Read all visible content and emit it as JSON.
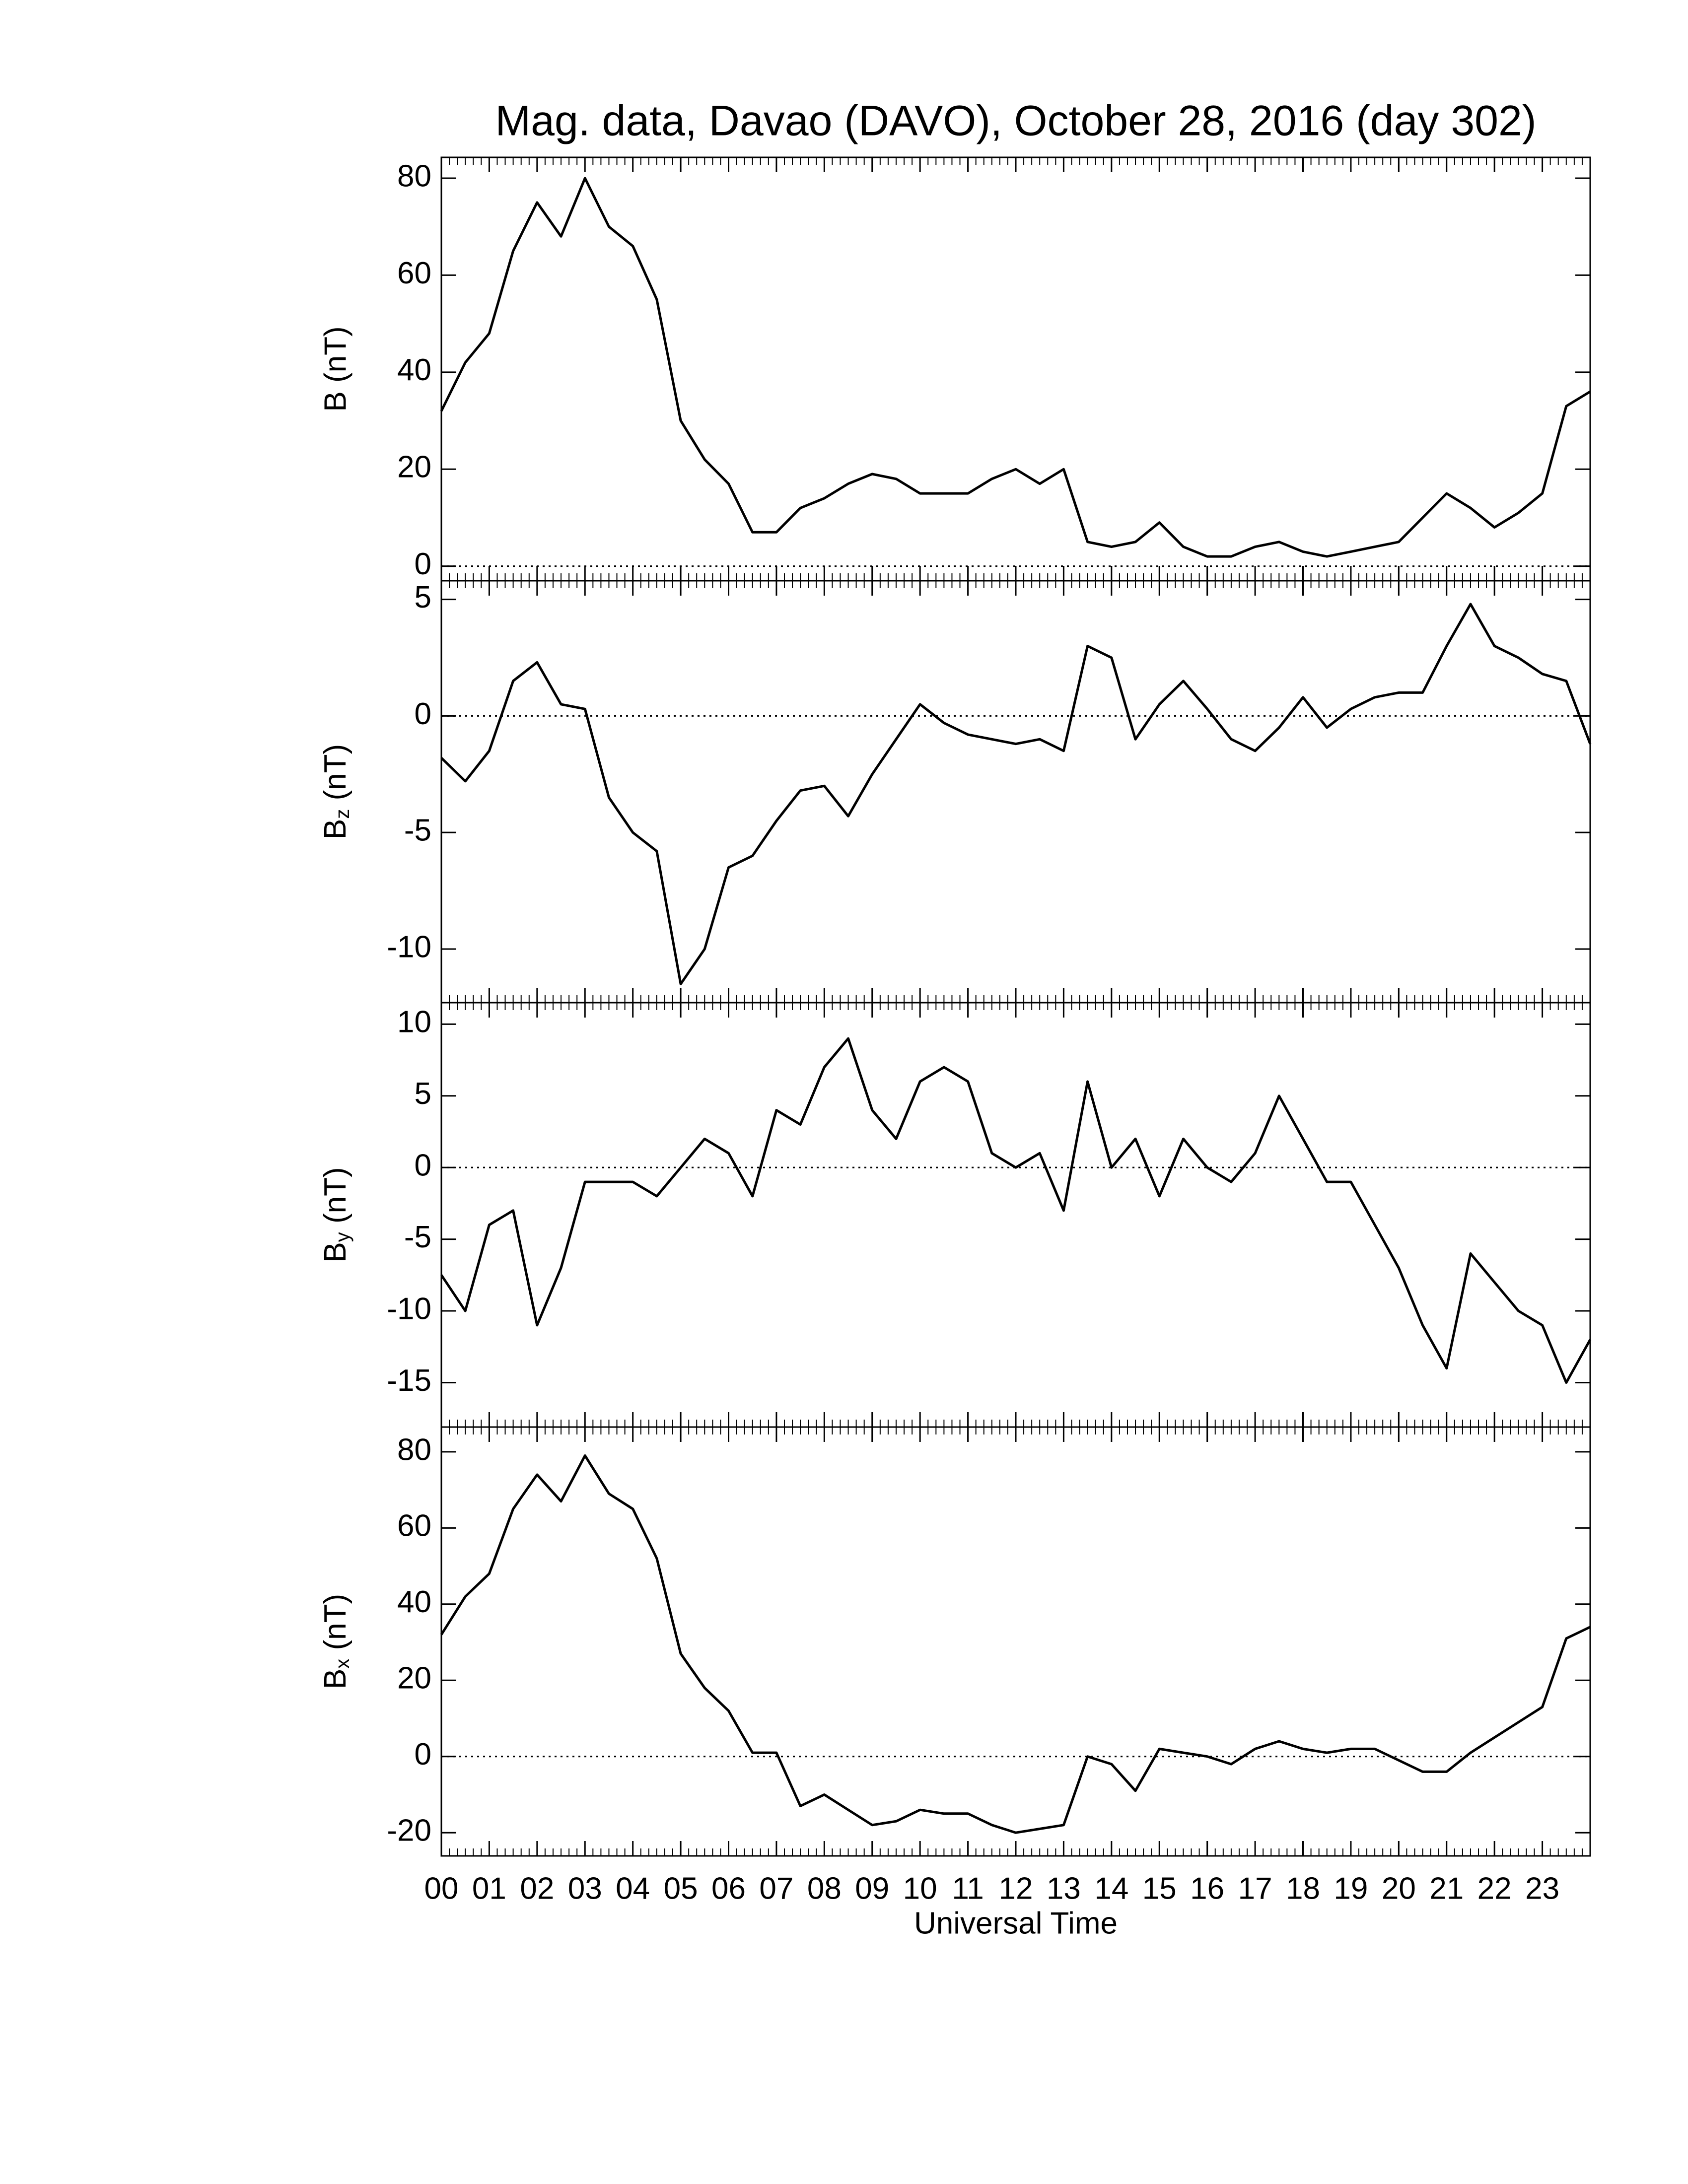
{
  "chart_data": [
    {
      "type": "line",
      "title": "Mag. data, Davao (DAVO), October 28, 2016 (day 302)",
      "ylabel": "B (nT)",
      "color": "#000000",
      "ylim": [
        -3,
        84.3
      ],
      "yticks": [
        0,
        20,
        40,
        60,
        80
      ],
      "x": [
        0,
        0.5,
        1,
        1.5,
        2,
        2.5,
        3,
        3.5,
        4,
        4.5,
        5,
        5.5,
        6,
        6.5,
        7,
        7.5,
        8,
        8.5,
        9,
        9.5,
        10,
        10.5,
        11,
        11.5,
        12,
        12.5,
        13,
        13.5,
        14,
        14.5,
        15,
        15.5,
        16,
        16.5,
        17,
        17.5,
        18,
        18.5,
        19,
        19.5,
        20,
        20.5,
        21,
        21.5,
        22,
        22.5,
        23,
        23.5,
        24
      ],
      "values": [
        32,
        42,
        48,
        65,
        75,
        68,
        80,
        70,
        66,
        55,
        30,
        22,
        17,
        7,
        7,
        12,
        14,
        17,
        19,
        18,
        15,
        15,
        15,
        18,
        20,
        17,
        20,
        5,
        4,
        5,
        9,
        4,
        2,
        2,
        4,
        5,
        3,
        2,
        3,
        4,
        5,
        10,
        15,
        12,
        8,
        11,
        15,
        33,
        36
      ]
    },
    {
      "type": "line",
      "ylabel": "Bz (nT)",
      "color": "#000000",
      "ylim": [
        -12.3,
        5.8
      ],
      "yticks": [
        -10,
        -5,
        0,
        5
      ],
      "x": [
        0,
        0.5,
        1,
        1.5,
        2,
        2.5,
        3,
        3.5,
        4,
        4.5,
        5,
        5.5,
        6,
        6.5,
        7,
        7.5,
        8,
        8.5,
        9,
        9.5,
        10,
        10.5,
        11,
        11.5,
        12,
        12.5,
        13,
        13.5,
        14,
        14.5,
        15,
        15.5,
        16,
        16.5,
        17,
        17.5,
        18,
        18.5,
        19,
        19.5,
        20,
        20.5,
        21,
        21.5,
        22,
        22.5,
        23,
        23.5,
        24
      ],
      "values": [
        -1.8,
        -2.8,
        -1.5,
        1.5,
        2.3,
        0.5,
        0.3,
        -3.5,
        -5.0,
        -5.8,
        -11.5,
        -10.0,
        -6.5,
        -6.0,
        -4.5,
        -3.2,
        -3.0,
        -4.3,
        -2.5,
        -1.0,
        0.5,
        -0.3,
        -0.8,
        -1.0,
        -1.2,
        -1.0,
        -1.5,
        3.0,
        2.5,
        -1.0,
        0.5,
        1.5,
        0.3,
        -1.0,
        -1.5,
        -0.5,
        0.8,
        -0.5,
        0.3,
        0.8,
        1.0,
        1.0,
        3.0,
        4.8,
        3.0,
        2.5,
        1.8,
        1.5,
        -1.2
      ]
    },
    {
      "type": "line",
      "ylabel": "By (nT)",
      "color": "#000000",
      "ylim": [
        -18.1,
        11.5
      ],
      "yticks": [
        -15,
        -10,
        -5,
        0,
        5,
        10
      ],
      "x": [
        0,
        0.5,
        1,
        1.5,
        2,
        2.5,
        3,
        3.5,
        4,
        4.5,
        5,
        5.5,
        6,
        6.5,
        7,
        7.5,
        8,
        8.5,
        9,
        9.5,
        10,
        10.5,
        11,
        11.5,
        12,
        12.5,
        13,
        13.5,
        14,
        14.5,
        15,
        15.5,
        16,
        16.5,
        17,
        17.5,
        18,
        18.5,
        19,
        19.5,
        20,
        20.5,
        21,
        21.5,
        22,
        22.5,
        23,
        23.5,
        24
      ],
      "values": [
        -7.5,
        -10,
        -4,
        -3,
        -11,
        -7,
        -1,
        -1,
        -1,
        -2,
        0,
        2,
        1,
        -2,
        4,
        3,
        7,
        9,
        4,
        2,
        6,
        7,
        6,
        1,
        0,
        1,
        -3,
        6,
        0,
        2,
        -2,
        2,
        0,
        -1,
        1,
        5,
        2,
        -1,
        -1,
        -4,
        -7,
        -11,
        -14,
        -6,
        -8,
        -10,
        -11,
        -15,
        -12
      ]
    },
    {
      "type": "line",
      "ylabel": "Bx (nT)",
      "xlabel": "Universal Time",
      "color": "#000000",
      "ylim": [
        -26.1,
        86.5
      ],
      "yticks": [
        -20,
        0,
        20,
        40,
        60,
        80
      ],
      "xlim": [
        0,
        24
      ],
      "xticks": [
        {
          "value": 0,
          "label": "00"
        },
        {
          "value": 1,
          "label": "01"
        },
        {
          "value": 2,
          "label": "02"
        },
        {
          "value": 3,
          "label": "03"
        },
        {
          "value": 4,
          "label": "04"
        },
        {
          "value": 5,
          "label": "05"
        },
        {
          "value": 6,
          "label": "06"
        },
        {
          "value": 7,
          "label": "07"
        },
        {
          "value": 8,
          "label": "08"
        },
        {
          "value": 9,
          "label": "09"
        },
        10,
        11,
        12,
        13,
        14,
        15,
        16,
        17,
        18,
        19,
        20,
        21,
        22,
        23
      ],
      "x": [
        0,
        0.5,
        1,
        1.5,
        2,
        2.5,
        3,
        3.5,
        4,
        4.5,
        5,
        5.5,
        6,
        6.5,
        7,
        7.5,
        8,
        8.5,
        9,
        9.5,
        10,
        10.5,
        11,
        11.5,
        12,
        12.5,
        13,
        13.5,
        14,
        14.5,
        15,
        15.5,
        16,
        16.5,
        17,
        17.5,
        18,
        18.5,
        19,
        19.5,
        20,
        20.5,
        21,
        21.5,
        22,
        22.5,
        23,
        23.5,
        24
      ],
      "values": [
        32,
        42,
        48,
        65,
        74,
        67,
        79,
        69,
        65,
        52,
        27,
        18,
        12,
        1,
        1,
        -13,
        -10,
        -14,
        -18,
        -17,
        -14,
        -15,
        -15,
        -18,
        -20,
        -19,
        -18,
        0,
        -2,
        -9,
        2,
        1,
        0,
        -2,
        2,
        4,
        2,
        1,
        2,
        2,
        -1,
        -4,
        -4,
        1,
        5,
        9,
        13,
        31,
        34
      ]
    }
  ]
}
